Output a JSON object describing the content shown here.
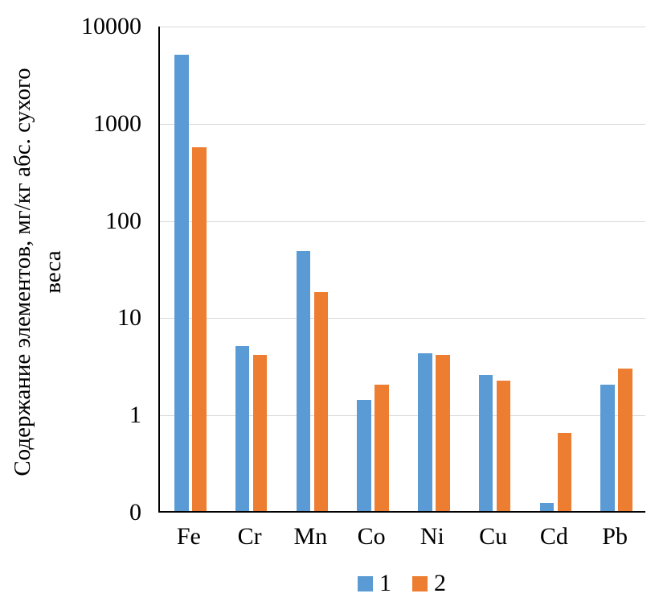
{
  "style": {
    "series1_color": "#5b9bd5",
    "series2_color": "#ed7d31",
    "gridline_color": "#d9d9d9",
    "axis_color": "#000000",
    "background_color": "#ffffff",
    "text_color": "#000000"
  },
  "chart_data": {
    "type": "bar",
    "title": "",
    "categories": [
      "Fe",
      "Cr",
      "Mn",
      "Co",
      "Ni",
      "Cu",
      "Cd",
      "Pb"
    ],
    "series": [
      {
        "name": "1",
        "color": "#5b9bd5",
        "values": [
          4900,
          5.0,
          47,
          1.4,
          4.2,
          2.5,
          0.12,
          2.0
        ]
      },
      {
        "name": "2",
        "color": "#ed7d31",
        "values": [
          550,
          4.0,
          18,
          2.0,
          4.0,
          2.2,
          0.63,
          2.9
        ]
      }
    ],
    "xlabel": "",
    "ylabel": "Содержание элементов, мг/кг абс. сухого веса",
    "ylabel_lines": [
      "Содержание элементов, мг/кг абс. сухого",
      "веса"
    ],
    "yscale": "log",
    "ylim": [
      0.1,
      10000
    ],
    "ytick_values": [
      0.1,
      1,
      10,
      100,
      1000,
      10000
    ],
    "ytick_labels": [
      "0",
      "1",
      "10",
      "100",
      "1000",
      "10000"
    ],
    "grid": true,
    "legend_position": "bottom",
    "legend_labels": [
      "1",
      "2"
    ]
  }
}
